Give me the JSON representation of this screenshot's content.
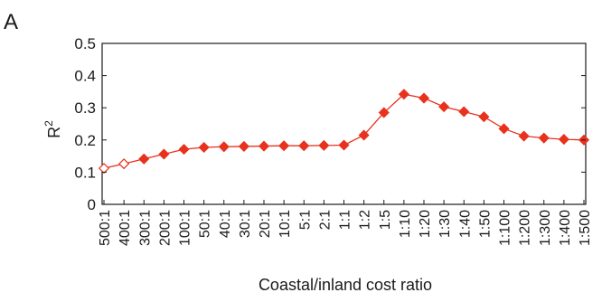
{
  "figure": {
    "panel_label": "A"
  },
  "chart_data": {
    "type": "line",
    "title": "",
    "panel_label": "A",
    "xlabel": "Coastal/inland cost ratio",
    "ylabel_base": "R",
    "ylabel_superscript": "2",
    "ylim": [
      0,
      0.5
    ],
    "yticks": [
      0,
      0.1,
      0.2,
      0.3,
      0.4,
      0.5
    ],
    "ytick_labels": [
      "0",
      "0.1",
      "0.2",
      "0.3",
      "0.4",
      "0.5"
    ],
    "grid": false,
    "series_color": "#e8321e",
    "categories": [
      "500:1",
      "400:1",
      "300:1",
      "200:1",
      "100:1",
      "50:1",
      "40:1",
      "30:1",
      "20:1",
      "10:1",
      "5:1",
      "2:1",
      "1:1",
      "1:2",
      "1:5",
      "1:10",
      "1:20",
      "1:30",
      "1:40",
      "1:50",
      "1:100",
      "1:200",
      "1:300",
      "1:400",
      "1:500"
    ],
    "series": [
      {
        "values": [
          0.112,
          0.126,
          0.141,
          0.156,
          0.171,
          0.177,
          0.179,
          0.18,
          0.181,
          0.182,
          0.182,
          0.183,
          0.184,
          0.215,
          0.285,
          0.342,
          0.33,
          0.303,
          0.288,
          0.272,
          0.235,
          0.212,
          0.206,
          0.202,
          0.2
        ],
        "marker_filled": [
          false,
          false,
          true,
          true,
          true,
          true,
          true,
          true,
          true,
          true,
          true,
          true,
          true,
          true,
          true,
          true,
          true,
          true,
          true,
          true,
          true,
          true,
          true,
          true,
          true
        ]
      }
    ]
  }
}
